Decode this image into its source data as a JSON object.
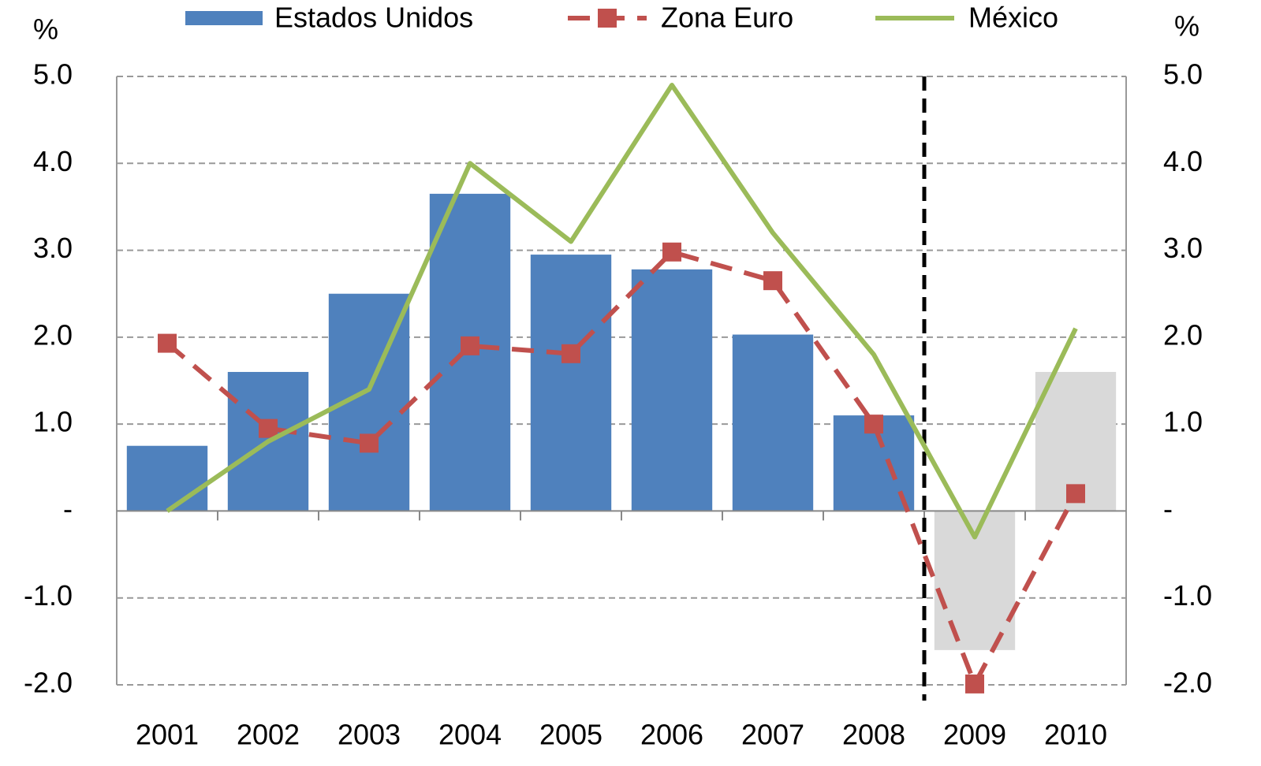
{
  "chart_data": {
    "type": "bar-line",
    "y_label": "%",
    "y2_label": "%",
    "categories": [
      "2001",
      "2002",
      "2003",
      "2004",
      "2005",
      "2006",
      "2007",
      "2008",
      "2009",
      "2010"
    ],
    "series": [
      {
        "name": "Estados Unidos",
        "type": "bar",
        "color": "#4f81bd",
        "colors": [
          "#4f81bd",
          "#4f81bd",
          "#4f81bd",
          "#4f81bd",
          "#4f81bd",
          "#4f81bd",
          "#4f81bd",
          "#4f81bd",
          "#d9d9d9",
          "#d9d9d9"
        ],
        "values": [
          0.75,
          1.6,
          2.5,
          3.65,
          2.95,
          2.78,
          2.03,
          1.1,
          -1.6,
          1.6
        ]
      },
      {
        "name": "Zona Euro",
        "type": "line",
        "color": "#c0504d",
        "dashed": true,
        "marker": "square",
        "values": [
          1.93,
          0.95,
          0.78,
          1.9,
          1.81,
          2.98,
          2.65,
          1.0,
          -1.99,
          0.2
        ]
      },
      {
        "name": "México",
        "type": "line",
        "color": "#9bbb59",
        "axis": "y2",
        "values": [
          0.0,
          0.8,
          1.4,
          4.0,
          3.1,
          4.9,
          3.2,
          1.8,
          -0.3,
          2.1
        ]
      }
    ],
    "ylim": [
      -2,
      5
    ],
    "yticks": [
      {
        "value": -2,
        "label": "-2.0"
      },
      {
        "value": -1,
        "label": "-1.0"
      },
      {
        "value": 0,
        "label": "-"
      },
      {
        "value": 1,
        "label": "1.0"
      },
      {
        "value": 2,
        "label": "2.0"
      },
      {
        "value": 3,
        "label": "3.0"
      },
      {
        "value": 4,
        "label": "4.0"
      },
      {
        "value": 5,
        "label": "5.0"
      }
    ],
    "y2lim": [
      -2,
      5
    ],
    "y2ticks": [
      {
        "value": -2,
        "label": "-2.0"
      },
      {
        "value": -1,
        "label": "-1.0"
      },
      {
        "value": 0,
        "label": "-"
      },
      {
        "value": 1,
        "label": "1.0"
      },
      {
        "value": 2,
        "label": "2.0"
      },
      {
        "value": 3,
        "label": "3.0"
      },
      {
        "value": 4,
        "label": "4.0"
      },
      {
        "value": 5,
        "label": "5.0"
      }
    ],
    "grid": true,
    "legend": "top"
  }
}
